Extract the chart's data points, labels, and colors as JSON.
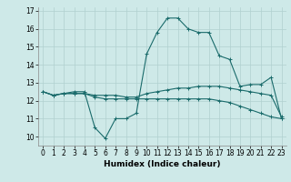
{
  "title": "",
  "xlabel": "Humidex (Indice chaleur)",
  "ylabel": "",
  "bg_color": "#cee9e8",
  "grid_color": "#b0d0cf",
  "line_color": "#1a6b6b",
  "x": [
    0,
    1,
    2,
    3,
    4,
    5,
    6,
    7,
    8,
    9,
    10,
    11,
    12,
    13,
    14,
    15,
    16,
    17,
    18,
    19,
    20,
    21,
    22,
    23
  ],
  "line1": [
    12.5,
    12.3,
    12.4,
    12.5,
    12.5,
    10.5,
    9.9,
    11.0,
    11.0,
    11.3,
    14.6,
    15.8,
    16.6,
    16.6,
    16.0,
    15.8,
    15.8,
    14.5,
    14.3,
    12.8,
    12.9,
    12.9,
    13.3,
    11.0
  ],
  "line2": [
    12.5,
    12.3,
    12.4,
    12.4,
    12.4,
    12.3,
    12.3,
    12.3,
    12.2,
    12.2,
    12.4,
    12.5,
    12.6,
    12.7,
    12.7,
    12.8,
    12.8,
    12.8,
    12.7,
    12.6,
    12.5,
    12.4,
    12.3,
    11.1
  ],
  "line3": [
    12.5,
    12.3,
    12.4,
    12.4,
    12.4,
    12.2,
    12.1,
    12.1,
    12.1,
    12.1,
    12.1,
    12.1,
    12.1,
    12.1,
    12.1,
    12.1,
    12.1,
    12.0,
    11.9,
    11.7,
    11.5,
    11.3,
    11.1,
    11.0
  ],
  "ylim": [
    9.5,
    17.2
  ],
  "yticks": [
    10,
    11,
    12,
    13,
    14,
    15,
    16,
    17
  ],
  "xticks": [
    0,
    1,
    2,
    3,
    4,
    5,
    6,
    7,
    8,
    9,
    10,
    11,
    12,
    13,
    14,
    15,
    16,
    17,
    18,
    19,
    20,
    21,
    22,
    23
  ],
  "tick_fontsize": 5.5,
  "xlabel_fontsize": 6.5
}
